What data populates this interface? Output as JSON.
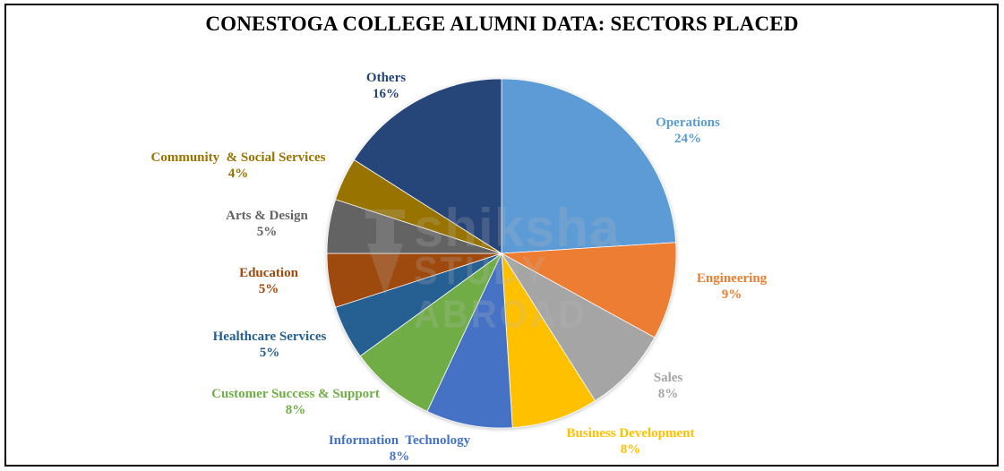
{
  "chart_data": {
    "type": "pie",
    "title": "CONESTOGA COLLEGE ALUMNI DATA: SECTORS PLACED",
    "categories": [
      "Operations",
      "Engineering",
      "Sales",
      "Business Development",
      "Information  Technology",
      "Customer Success & Support",
      "Healthcare Services",
      "Education",
      "Arts & Design",
      "Community  & Social Services",
      "Others"
    ],
    "values": [
      24,
      9,
      8,
      8,
      8,
      8,
      5,
      5,
      5,
      4,
      16
    ],
    "unit": "%",
    "colors": [
      "#5B9BD5",
      "#ED7D31",
      "#A5A5A5",
      "#FFC000",
      "#4472C4",
      "#70AD47",
      "#255E91",
      "#9E480E",
      "#636363",
      "#997300",
      "#264478"
    ],
    "label_colors": [
      "#5B9BD5",
      "#ED7D31",
      "#A5A5A5",
      "#FFC000",
      "#4472C4",
      "#70AD47",
      "#255E91",
      "#9E480E",
      "#636363",
      "#997300",
      "#264478"
    ],
    "start_angle_deg": 0,
    "direction": "clockwise",
    "legend": "none (data labels outside)"
  },
  "labels": [
    {
      "name": "Operations",
      "pct": "24%"
    },
    {
      "name": "Engineering",
      "pct": "9%"
    },
    {
      "name": "Sales",
      "pct": "8%"
    },
    {
      "name": "Business Development",
      "pct": "8%"
    },
    {
      "name": "Information  Technology",
      "pct": "8%"
    },
    {
      "name": "Customer Success & Support",
      "pct": "8%"
    },
    {
      "name": "Healthcare Services",
      "pct": "5%"
    },
    {
      "name": "Education",
      "pct": "5%"
    },
    {
      "name": "Arts & Design",
      "pct": "5%"
    },
    {
      "name": "Community  & Social Services",
      "pct": "4%"
    },
    {
      "name": "Others",
      "pct": "16%"
    }
  ],
  "watermark": {
    "line1": "shiksha",
    "line2": "STUDY ABROAD"
  }
}
